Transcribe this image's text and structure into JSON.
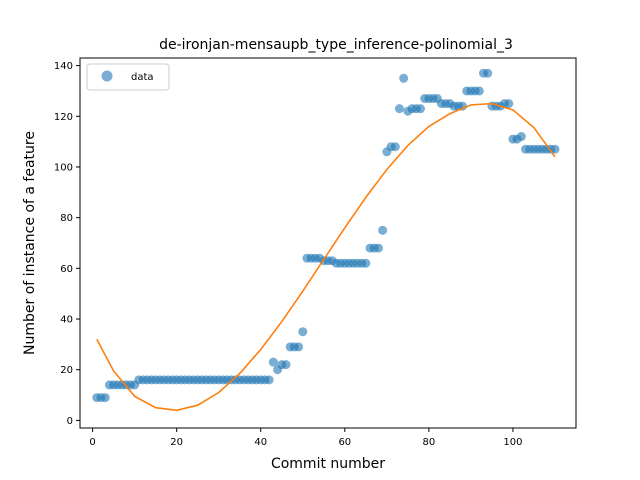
{
  "chart_data": {
    "type": "scatter",
    "title": "de-ironjan-mensaupb_type_inference-polinomial_3",
    "xlabel": "Commit number",
    "ylabel": "Number of instance of a feature",
    "xlim": [
      -3,
      115
    ],
    "ylim": [
      -3,
      143
    ],
    "xticks": [
      0,
      20,
      40,
      60,
      80,
      100
    ],
    "yticks": [
      0,
      20,
      40,
      60,
      80,
      100,
      120,
      140
    ],
    "grid": false,
    "legend": {
      "placement": "top-left",
      "entries": [
        "data"
      ]
    },
    "colors": {
      "data": "#1f77b4",
      "fit": "#ff7f0e"
    },
    "series": [
      {
        "name": "data",
        "kind": "scatter",
        "points": [
          [
            1,
            9
          ],
          [
            2,
            9
          ],
          [
            3,
            9
          ],
          [
            4,
            14
          ],
          [
            5,
            14
          ],
          [
            6,
            14
          ],
          [
            7,
            14
          ],
          [
            8,
            14
          ],
          [
            9,
            14
          ],
          [
            10,
            14
          ],
          [
            11,
            16
          ],
          [
            12,
            16
          ],
          [
            13,
            16
          ],
          [
            14,
            16
          ],
          [
            15,
            16
          ],
          [
            16,
            16
          ],
          [
            17,
            16
          ],
          [
            18,
            16
          ],
          [
            19,
            16
          ],
          [
            20,
            16
          ],
          [
            21,
            16
          ],
          [
            22,
            16
          ],
          [
            23,
            16
          ],
          [
            24,
            16
          ],
          [
            25,
            16
          ],
          [
            26,
            16
          ],
          [
            27,
            16
          ],
          [
            28,
            16
          ],
          [
            29,
            16
          ],
          [
            30,
            16
          ],
          [
            31,
            16
          ],
          [
            32,
            16
          ],
          [
            33,
            16
          ],
          [
            34,
            16
          ],
          [
            35,
            16
          ],
          [
            36,
            16
          ],
          [
            37,
            16
          ],
          [
            38,
            16
          ],
          [
            39,
            16
          ],
          [
            40,
            16
          ],
          [
            41,
            16
          ],
          [
            42,
            16
          ],
          [
            43,
            23
          ],
          [
            44,
            20
          ],
          [
            45,
            22
          ],
          [
            46,
            22
          ],
          [
            47,
            29
          ],
          [
            48,
            29
          ],
          [
            49,
            29
          ],
          [
            50,
            35
          ],
          [
            51,
            64
          ],
          [
            52,
            64
          ],
          [
            53,
            64
          ],
          [
            54,
            64
          ],
          [
            55,
            63
          ],
          [
            56,
            63
          ],
          [
            57,
            63
          ],
          [
            58,
            62
          ],
          [
            59,
            62
          ],
          [
            60,
            62
          ],
          [
            61,
            62
          ],
          [
            62,
            62
          ],
          [
            63,
            62
          ],
          [
            64,
            62
          ],
          [
            65,
            62
          ],
          [
            66,
            68
          ],
          [
            67,
            68
          ],
          [
            68,
            68
          ],
          [
            69,
            75
          ],
          [
            70,
            106
          ],
          [
            71,
            108
          ],
          [
            72,
            108
          ],
          [
            73,
            123
          ],
          [
            74,
            135
          ],
          [
            75,
            122
          ],
          [
            76,
            123
          ],
          [
            77,
            123
          ],
          [
            78,
            123
          ],
          [
            79,
            127
          ],
          [
            80,
            127
          ],
          [
            81,
            127
          ],
          [
            82,
            127
          ],
          [
            83,
            125
          ],
          [
            84,
            125
          ],
          [
            85,
            125
          ],
          [
            86,
            124
          ],
          [
            87,
            124
          ],
          [
            88,
            124
          ],
          [
            89,
            130
          ],
          [
            90,
            130
          ],
          [
            91,
            130
          ],
          [
            92,
            130
          ],
          [
            93,
            137
          ],
          [
            94,
            137
          ],
          [
            95,
            124
          ],
          [
            96,
            124
          ],
          [
            97,
            124
          ],
          [
            98,
            125
          ],
          [
            99,
            125
          ],
          [
            100,
            111
          ],
          [
            101,
            111
          ],
          [
            102,
            112
          ],
          [
            103,
            107
          ],
          [
            104,
            107
          ],
          [
            105,
            107
          ],
          [
            106,
            107
          ],
          [
            107,
            107
          ],
          [
            108,
            107
          ],
          [
            109,
            107
          ],
          [
            110,
            107
          ]
        ]
      },
      {
        "kind": "line",
        "points": [
          [
            1,
            32.0
          ],
          [
            5,
            19.5
          ],
          [
            10,
            9.5
          ],
          [
            15,
            5.0
          ],
          [
            20,
            4.0
          ],
          [
            25,
            6.0
          ],
          [
            30,
            11.0
          ],
          [
            35,
            18.5
          ],
          [
            40,
            28.0
          ],
          [
            45,
            39.0
          ],
          [
            50,
            51.0
          ],
          [
            55,
            63.5
          ],
          [
            60,
            76.0
          ],
          [
            65,
            88.0
          ],
          [
            70,
            99.0
          ],
          [
            75,
            108.5
          ],
          [
            80,
            116.0
          ],
          [
            85,
            121.0
          ],
          [
            90,
            124.5
          ],
          [
            95,
            125.0
          ],
          [
            100,
            122.5
          ],
          [
            105,
            115.5
          ],
          [
            110,
            104.0
          ]
        ]
      }
    ]
  }
}
